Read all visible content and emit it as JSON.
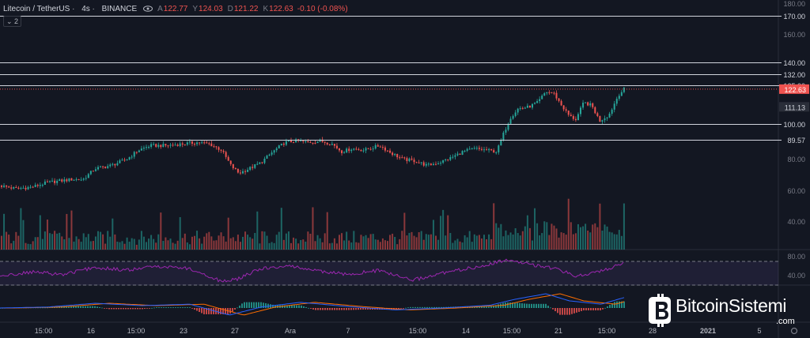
{
  "header": {
    "symbol": "Litecoin / TetherUS",
    "timeframe": "4s",
    "exchange": "BINANCE",
    "open_label": "A",
    "open": "122.77",
    "high_label": "Y",
    "high": "124.03",
    "low_label": "D",
    "low": "121.22",
    "close_label": "K",
    "close": "122.63",
    "change": "-0.10 (-0.08%)",
    "collapse_label": "⌄ 2"
  },
  "logo": {
    "name": "BitcoinSistemi",
    "suffix": ".com"
  },
  "colors": {
    "background": "#131722",
    "up": "#26a69a",
    "down": "#ef5350",
    "level_line": "#d1d4dc",
    "rsi": "#9c27b0",
    "macd_line": "#2962ff",
    "signal_line": "#ff6d00",
    "current_price_label": "#ef5350"
  },
  "chart_data": [
    {
      "type": "candlestick",
      "title": "Litecoin / TetherUS",
      "x_ticks": [
        "15:00",
        "16",
        "15:00",
        "23",
        "27",
        "Ara",
        "7",
        "15:00",
        "14",
        "15:00",
        "21",
        "15:00",
        "28",
        "2021",
        "5"
      ],
      "y_ticks": [
        "180.00",
        "160.00",
        "100.00",
        "80.00",
        "60.00",
        "40.00"
      ],
      "ylim": [
        30,
        182
      ],
      "price_path": [
        [
          0,
          60
        ],
        [
          20,
          58
        ],
        [
          40,
          59
        ],
        [
          60,
          62
        ],
        [
          75,
          63
        ],
        [
          90,
          64
        ],
        [
          105,
          64
        ],
        [
          120,
          71
        ],
        [
          140,
          73
        ],
        [
          160,
          77
        ],
        [
          175,
          83
        ],
        [
          190,
          86
        ],
        [
          210,
          86
        ],
        [
          230,
          87
        ],
        [
          250,
          88
        ],
        [
          265,
          87
        ],
        [
          280,
          83
        ],
        [
          292,
          73
        ],
        [
          302,
          68
        ],
        [
          315,
          71
        ],
        [
          330,
          75
        ],
        [
          345,
          82
        ],
        [
          360,
          88
        ],
        [
          375,
          89
        ],
        [
          390,
          88
        ],
        [
          405,
          89
        ],
        [
          420,
          87
        ],
        [
          432,
          82
        ],
        [
          445,
          84
        ],
        [
          460,
          83
        ],
        [
          480,
          86
        ],
        [
          495,
          81
        ],
        [
          510,
          77
        ],
        [
          525,
          76
        ],
        [
          540,
          73
        ],
        [
          555,
          75
        ],
        [
          570,
          78
        ],
        [
          585,
          82
        ],
        [
          600,
          84
        ],
        [
          615,
          83
        ],
        [
          628,
          82
        ],
        [
          636,
          93
        ],
        [
          645,
          104
        ],
        [
          655,
          110
        ],
        [
          668,
          111
        ],
        [
          680,
          114
        ],
        [
          690,
          121
        ],
        [
          700,
          120
        ],
        [
          710,
          112
        ],
        [
          720,
          105
        ],
        [
          728,
          103
        ],
        [
          738,
          114
        ],
        [
          748,
          112
        ],
        [
          758,
          102
        ],
        [
          770,
          106
        ],
        [
          782,
          119
        ],
        [
          789,
          122.63
        ]
      ],
      "levels": [
        {
          "value": 170.0,
          "label": "170.00"
        },
        {
          "value": 140.0,
          "label": "140.00"
        },
        {
          "value": 132.0,
          "label": "132.00"
        },
        {
          "value": 125.0,
          "label": "125.00"
        },
        {
          "value": 100.0,
          "label": "100.00"
        },
        {
          "value": 89.57,
          "label": "89.57"
        }
      ],
      "current_price": {
        "value": 122.63,
        "label": "122.63"
      },
      "marker_price": {
        "value": 111.13,
        "label": "111.13"
      },
      "volume_ticks": [
        "60.00",
        "40.00"
      ]
    },
    {
      "type": "line",
      "title": "RSI",
      "y_ticks": [
        "80.00",
        "40.00"
      ],
      "ylim": [
        30,
        90
      ],
      "bands": [
        70,
        30
      ],
      "values_path": [
        [
          0,
          45
        ],
        [
          40,
          52
        ],
        [
          80,
          48
        ],
        [
          120,
          60
        ],
        [
          160,
          55
        ],
        [
          200,
          62
        ],
        [
          240,
          58
        ],
        [
          280,
          36
        ],
        [
          300,
          40
        ],
        [
          330,
          58
        ],
        [
          370,
          62
        ],
        [
          410,
          52
        ],
        [
          440,
          48
        ],
        [
          480,
          55
        ],
        [
          520,
          38
        ],
        [
          560,
          50
        ],
        [
          600,
          60
        ],
        [
          640,
          72
        ],
        [
          670,
          65
        ],
        [
          700,
          58
        ],
        [
          730,
          45
        ],
        [
          760,
          54
        ],
        [
          789,
          68
        ]
      ]
    },
    {
      "type": "bar",
      "title": "MACD",
      "macd_path": [
        [
          0,
          0
        ],
        [
          60,
          0.2
        ],
        [
          120,
          1
        ],
        [
          180,
          0.5
        ],
        [
          240,
          0.8
        ],
        [
          290,
          -1.5
        ],
        [
          330,
          0.2
        ],
        [
          380,
          1.2
        ],
        [
          440,
          0.3
        ],
        [
          500,
          -0.4
        ],
        [
          560,
          0
        ],
        [
          620,
          0.6
        ],
        [
          650,
          1.8
        ],
        [
          690,
          3
        ],
        [
          720,
          1.5
        ],
        [
          760,
          0.8
        ],
        [
          789,
          2.2
        ]
      ]
    }
  ]
}
